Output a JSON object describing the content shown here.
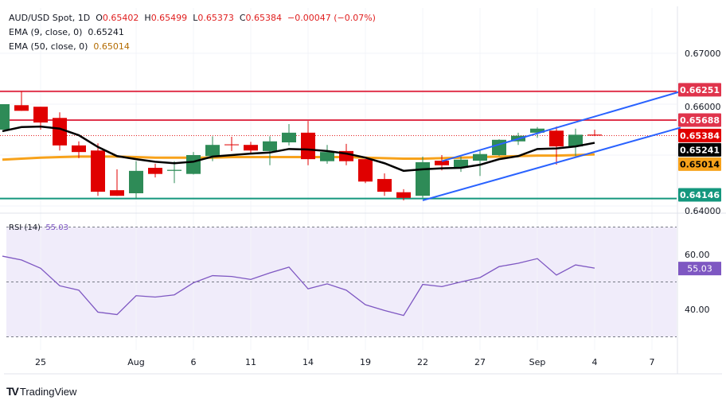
{
  "header": {
    "symbol": "AUD/USD Spot, 1D",
    "open_label": "O",
    "open": "0.65402",
    "high_label": "H",
    "high": "0.65499",
    "low_label": "L",
    "low": "0.65373",
    "close_label": "C",
    "close": "0.65384",
    "change": "−0.00047 (−0.07%)",
    "ema9_label": "EMA (9, close, 0)",
    "ema9_value": "0.65241",
    "ema50_label": "EMA (50, close, 0)",
    "ema50_value": "0.65014",
    "rsi_label": "RSI (14)",
    "rsi_value": "55.03"
  },
  "branding": {
    "logo_text": "TradingView"
  },
  "colors": {
    "up": "#2e8b57",
    "down": "#e00000",
    "ema9": "#000000",
    "ema50": "#f7a21b",
    "resistance": "#e0344c",
    "support": "#14977e",
    "channel": "#2962ff",
    "rsi": "#7e57c2",
    "rsi_band": "#f0ecfa"
  },
  "chart_data": [
    {
      "type": "candlestick",
      "title": "AUD/USD Spot, 1D",
      "ylim": [
        0.64,
        0.672
      ],
      "y_ticks": [
        "0.67000",
        "0.66000",
        "0.64000"
      ],
      "x_ticks": [
        {
          "label": "25",
          "bar": 2
        },
        {
          "label": "Aug",
          "bar": 7
        },
        {
          "label": "6",
          "bar": 10
        },
        {
          "label": "11",
          "bar": 13
        },
        {
          "label": "14",
          "bar": 16
        },
        {
          "label": "19",
          "bar": 19
        },
        {
          "label": "22",
          "bar": 22
        },
        {
          "label": "27",
          "bar": 25
        },
        {
          "label": "Sep",
          "bar": 28
        },
        {
          "label": "4",
          "bar": 31
        },
        {
          "label": "7",
          "bar": 34
        }
      ],
      "ohlc": [
        [
          0.655,
          0.66,
          0.655,
          0.66
        ],
        [
          0.6598,
          0.6625,
          0.6587,
          0.6587
        ],
        [
          0.6595,
          0.6595,
          0.655,
          0.6564
        ],
        [
          0.6573,
          0.6584,
          0.6509,
          0.6519
        ],
        [
          0.6519,
          0.6527,
          0.6494,
          0.6506
        ],
        [
          0.6509,
          0.6523,
          0.642,
          0.6428
        ],
        [
          0.6431,
          0.6472,
          0.642,
          0.642
        ],
        [
          0.6425,
          0.6488,
          0.6414,
          0.6469
        ],
        [
          0.6475,
          0.6483,
          0.6456,
          0.6463
        ],
        [
          0.6469,
          0.6488,
          0.6445,
          0.6471
        ],
        [
          0.6463,
          0.6506,
          0.6462,
          0.65
        ],
        [
          0.6498,
          0.6537,
          0.6488,
          0.652
        ],
        [
          0.6521,
          0.6536,
          0.6508,
          0.652
        ],
        [
          0.652,
          0.6526,
          0.6503,
          0.6509
        ],
        [
          0.6508,
          0.6537,
          0.648,
          0.6527
        ],
        [
          0.6525,
          0.6561,
          0.6519,
          0.6544
        ],
        [
          0.6544,
          0.6567,
          0.648,
          0.6492
        ],
        [
          0.6488,
          0.652,
          0.6483,
          0.6506
        ],
        [
          0.6508,
          0.6522,
          0.648,
          0.6488
        ],
        [
          0.6492,
          0.6492,
          0.6445,
          0.6448
        ],
        [
          0.6453,
          0.6464,
          0.642,
          0.6428
        ],
        [
          0.6427,
          0.6433,
          0.6411,
          0.6416
        ],
        [
          0.642,
          0.6497,
          0.6416,
          0.6486
        ],
        [
          0.6489,
          0.65,
          0.647,
          0.648
        ],
        [
          0.6475,
          0.6497,
          0.6467,
          0.6491
        ],
        [
          0.6489,
          0.6511,
          0.6459,
          0.6502
        ],
        [
          0.65,
          0.6531,
          0.6498,
          0.653
        ],
        [
          0.6527,
          0.6544,
          0.652,
          0.6538
        ],
        [
          0.6544,
          0.6555,
          0.6534,
          0.6552
        ],
        [
          0.6548,
          0.6556,
          0.6481,
          0.6517
        ],
        [
          0.6517,
          0.6552,
          0.6498,
          0.654
        ],
        [
          0.65402,
          0.65499,
          0.65373,
          0.65384
        ]
      ],
      "ema9": [
        0.6547,
        0.6555,
        0.6556,
        0.6552,
        0.6539,
        0.6516,
        0.6498,
        0.6492,
        0.6487,
        0.6484,
        0.6487,
        0.6497,
        0.65,
        0.6503,
        0.6505,
        0.6512,
        0.6511,
        0.6508,
        0.6503,
        0.6495,
        0.6484,
        0.6469,
        0.6472,
        0.6474,
        0.6475,
        0.6481,
        0.6492,
        0.6498,
        0.6512,
        0.6513,
        0.6517,
        0.65241
      ],
      "ema50": [
        0.6491,
        0.6493,
        0.6495,
        0.6496,
        0.6497,
        0.6497,
        0.6497,
        0.6496,
        0.6495,
        0.6495,
        0.6495,
        0.6495,
        0.6496,
        0.6496,
        0.6496,
        0.6496,
        0.6496,
        0.6496,
        0.6496,
        0.6495,
        0.6494,
        0.6493,
        0.6493,
        0.6494,
        0.6495,
        0.6496,
        0.6497,
        0.6498,
        0.6499,
        0.6499,
        0.65,
        0.65014
      ],
      "horizontal_levels": [
        {
          "value": 0.66251,
          "label": "0.66251",
          "kind": "resistance"
        },
        {
          "value": 0.65688,
          "label": "0.65688",
          "kind": "resistance"
        },
        {
          "value": 0.64146,
          "label": "0.64146",
          "kind": "support"
        }
      ],
      "channel": {
        "upper": [
          {
            "bar": 23,
            "price": 0.6488
          },
          {
            "bar": 35.5,
            "price": 0.6625
          }
        ],
        "lower": [
          {
            "bar": 22,
            "price": 0.6411
          },
          {
            "bar": 35.5,
            "price": 0.6554
          }
        ]
      },
      "last_price": {
        "value": 0.65384,
        "label": "0.65384"
      },
      "price_labels": {
        "ema9": "0.65241",
        "ema50": "0.65014"
      }
    },
    {
      "type": "line",
      "title": "RSI (14)",
      "ylim": [
        25,
        75
      ],
      "y_ticks": [
        "60.00",
        "40.00"
      ],
      "bands": [
        70,
        50,
        30
      ],
      "values": [
        59.4,
        58,
        55,
        48.6,
        47,
        39,
        38.1,
        45,
        44.5,
        45.3,
        49.7,
        52.3,
        52,
        50.9,
        53.3,
        55.4,
        47.5,
        49.3,
        47,
        41.7,
        39.6,
        37.8,
        49.1,
        48.3,
        50,
        51.6,
        55.6,
        56.8,
        58.5,
        52.5,
        56.2,
        55.03
      ],
      "last_label": "55.03"
    }
  ]
}
